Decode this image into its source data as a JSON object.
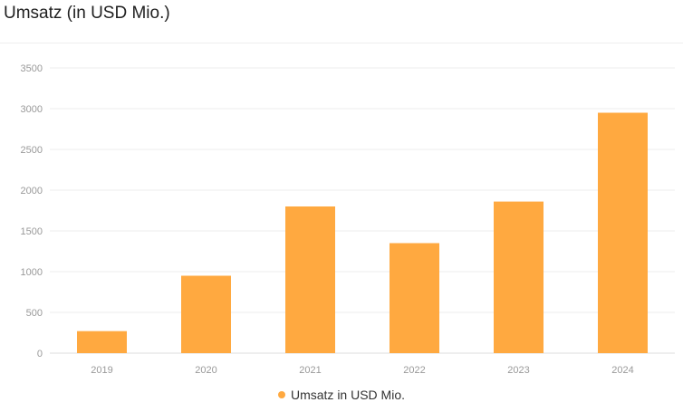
{
  "chart_data": {
    "type": "bar",
    "title": "Umsatz (in USD Mio.)",
    "categories": [
      "2019",
      "2020",
      "2021",
      "2022",
      "2023",
      "2024"
    ],
    "series": [
      {
        "name": "Umsatz in USD Mio.",
        "values": [
          270,
          950,
          1800,
          1350,
          1860,
          2950
        ],
        "color": "#FFA940"
      }
    ],
    "yticks": [
      0,
      500,
      1000,
      1500,
      2000,
      2500,
      3000,
      3500
    ],
    "ylim": [
      0,
      3500
    ],
    "grid": true,
    "legend_position": "bottom"
  }
}
